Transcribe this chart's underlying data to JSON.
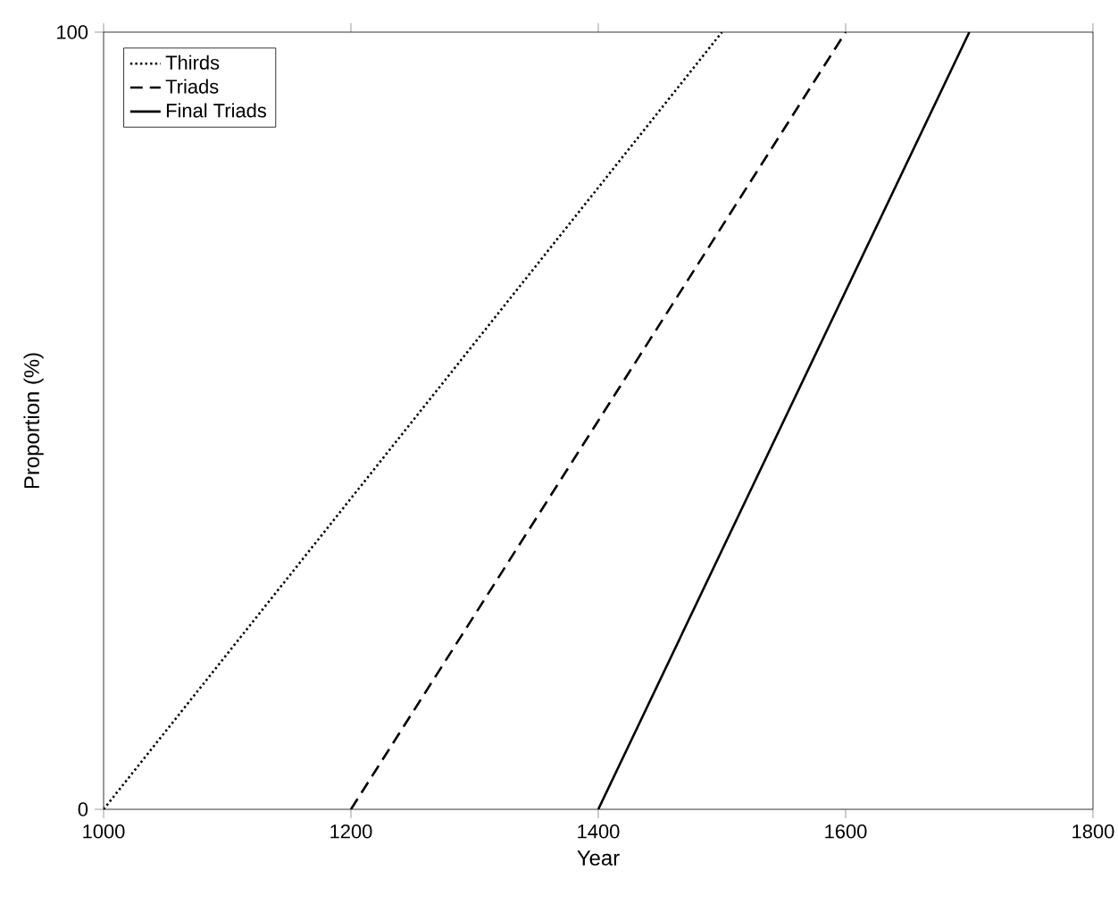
{
  "chart_data": {
    "type": "line",
    "xlabel": "Year",
    "ylabel": "Proportion (%)",
    "xlim": [
      1000,
      1800
    ],
    "xticks": [
      1000,
      1200,
      1400,
      1600,
      1800
    ],
    "ylim": [
      0,
      100
    ],
    "yticks": [
      0,
      100
    ],
    "legend": "top left",
    "grid": false,
    "series": [
      {
        "name": "Thirds",
        "color": "#000000",
        "line_style": "dotted",
        "x": [
          1000,
          1500
        ],
        "values": [
          0,
          100
        ]
      },
      {
        "name": "Triads",
        "color": "#000000",
        "line_style": "dashed",
        "x": [
          1200,
          1600
        ],
        "values": [
          0,
          100
        ]
      },
      {
        "name": "Final Triads",
        "color": "#000000",
        "line_style": "solid",
        "x": [
          1400,
          1700
        ],
        "values": [
          0,
          100
        ]
      }
    ]
  }
}
